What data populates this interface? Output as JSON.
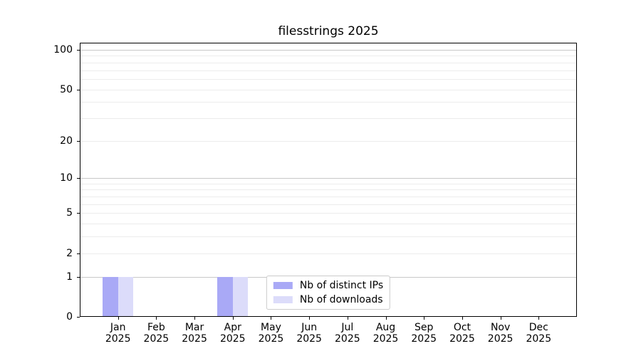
{
  "chart_data": {
    "type": "bar",
    "title": "filesstrings 2025",
    "x_year": "2025",
    "categories": [
      "Jan",
      "Feb",
      "Mar",
      "Apr",
      "May",
      "Jun",
      "Jul",
      "Aug",
      "Sep",
      "Oct",
      "Nov",
      "Dec"
    ],
    "series": [
      {
        "name": "Nb of distinct IPs",
        "color": "#a9a9f6",
        "values": [
          1,
          0,
          0,
          1,
          0,
          0,
          0,
          0,
          0,
          0,
          0,
          0
        ]
      },
      {
        "name": "Nb of downloads",
        "color": "#dcdcfa",
        "values": [
          1,
          0,
          0,
          1,
          0,
          0,
          0,
          0,
          0,
          0,
          0,
          0
        ]
      }
    ],
    "yscale": "log1p",
    "ylim": [
      0,
      113
    ],
    "yticks": [
      0,
      1,
      2,
      5,
      10,
      20,
      50,
      100
    ],
    "grid_major": [
      1,
      10,
      100
    ],
    "grid_minor": [
      2,
      3,
      4,
      5,
      6,
      7,
      8,
      9,
      20,
      30,
      40,
      50,
      60,
      70,
      80,
      90
    ],
    "legend_position": "lower center",
    "colors": {
      "grid_major": "#c8c8c8",
      "grid_minor": "#ececec",
      "spine": "#000000",
      "text": "#000000",
      "background": "#ffffff"
    }
  }
}
